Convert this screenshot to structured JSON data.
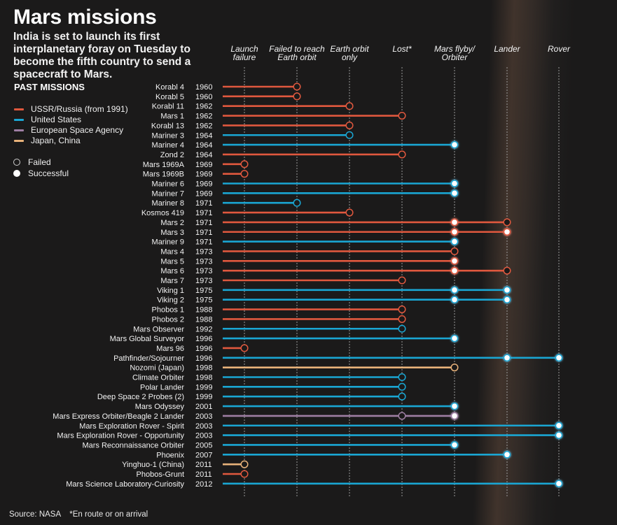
{
  "header": {
    "title": "Mars missions",
    "subtitle": "India is set to launch its first interplanetary foray on Tuesday to become the fifth country to send a spacecraft to Mars."
  },
  "legend": {
    "title": "PAST MISSIONS",
    "agencies": [
      {
        "key": "ussr",
        "label": "USSR/Russia (from 1991)",
        "color": "#e0583e"
      },
      {
        "key": "us",
        "label": "United States",
        "color": "#1aa6d3"
      },
      {
        "key": "esa",
        "label": "European Space Agency",
        "color": "#9e7ea3"
      },
      {
        "key": "japan_china",
        "label": "Japan, China",
        "color": "#e8b27a"
      }
    ],
    "statuses": [
      {
        "key": "failed",
        "label": "Failed"
      },
      {
        "key": "successful",
        "label": "Successful"
      }
    ]
  },
  "footer": {
    "source": "Source: NASA    *En route or on arrival"
  },
  "chart_data": {
    "type": "table",
    "title": "Mars missions",
    "stages": [
      "Launch failure",
      "Failed to reach Earth orbit",
      "Earth orbit only",
      "Lost*",
      "Mars flyby/ Orbiter",
      "Lander",
      "Rover"
    ],
    "stage_lines": [
      [
        "Launch",
        "failure"
      ],
      [
        "Failed to reach",
        "Earth orbit"
      ],
      [
        "Earth orbit",
        "only"
      ],
      [
        "Lost*"
      ],
      [
        "Mars flyby/",
        "Orbiter"
      ],
      [
        "Lander"
      ],
      [
        "Rover"
      ]
    ],
    "missions": [
      {
        "name": "Korabl 4",
        "year": "1960",
        "agency": "ussr",
        "markers": [
          {
            "stage": 1,
            "status": "failed"
          }
        ]
      },
      {
        "name": "Korabl 5",
        "year": "1960",
        "agency": "ussr",
        "markers": [
          {
            "stage": 1,
            "status": "failed"
          }
        ]
      },
      {
        "name": "Korabl 11",
        "year": "1962",
        "agency": "ussr",
        "markers": [
          {
            "stage": 2,
            "status": "failed"
          }
        ]
      },
      {
        "name": "Mars 1",
        "year": "1962",
        "agency": "ussr",
        "markers": [
          {
            "stage": 3,
            "status": "failed"
          }
        ]
      },
      {
        "name": "Korabl 13",
        "year": "1962",
        "agency": "ussr",
        "markers": [
          {
            "stage": 2,
            "status": "failed"
          }
        ]
      },
      {
        "name": "Mariner 3",
        "year": "1964",
        "agency": "us",
        "markers": [
          {
            "stage": 2,
            "status": "failed"
          }
        ]
      },
      {
        "name": "Mariner 4",
        "year": "1964",
        "agency": "us",
        "markers": [
          {
            "stage": 4,
            "status": "successful"
          }
        ]
      },
      {
        "name": "Zond 2",
        "year": "1964",
        "agency": "ussr",
        "markers": [
          {
            "stage": 3,
            "status": "failed"
          }
        ]
      },
      {
        "name": "Mars 1969A",
        "year": "1969",
        "agency": "ussr",
        "markers": [
          {
            "stage": 0,
            "status": "failed"
          }
        ]
      },
      {
        "name": "Mars 1969B",
        "year": "1969",
        "agency": "ussr",
        "markers": [
          {
            "stage": 0,
            "status": "failed"
          }
        ]
      },
      {
        "name": "Mariner 6",
        "year": "1969",
        "agency": "us",
        "markers": [
          {
            "stage": 4,
            "status": "successful"
          }
        ]
      },
      {
        "name": "Mariner 7",
        "year": "1969",
        "agency": "us",
        "markers": [
          {
            "stage": 4,
            "status": "successful"
          }
        ]
      },
      {
        "name": "Mariner 8",
        "year": "1971",
        "agency": "us",
        "markers": [
          {
            "stage": 1,
            "status": "failed"
          }
        ]
      },
      {
        "name": "Kosmos 419",
        "year": "1971",
        "agency": "ussr",
        "markers": [
          {
            "stage": 2,
            "status": "failed"
          }
        ]
      },
      {
        "name": "Mars 2",
        "year": "1971",
        "agency": "ussr",
        "markers": [
          {
            "stage": 4,
            "status": "successful"
          },
          {
            "stage": 5,
            "status": "failed"
          }
        ]
      },
      {
        "name": "Mars 3",
        "year": "1971",
        "agency": "ussr",
        "markers": [
          {
            "stage": 4,
            "status": "successful"
          },
          {
            "stage": 5,
            "status": "successful"
          }
        ]
      },
      {
        "name": "Mariner 9",
        "year": "1971",
        "agency": "us",
        "markers": [
          {
            "stage": 4,
            "status": "successful"
          }
        ]
      },
      {
        "name": "Mars 4",
        "year": "1973",
        "agency": "ussr",
        "markers": [
          {
            "stage": 4,
            "status": "failed"
          }
        ]
      },
      {
        "name": "Mars 5",
        "year": "1973",
        "agency": "ussr",
        "markers": [
          {
            "stage": 4,
            "status": "successful"
          }
        ]
      },
      {
        "name": "Mars 6",
        "year": "1973",
        "agency": "ussr",
        "markers": [
          {
            "stage": 4,
            "status": "successful"
          },
          {
            "stage": 5,
            "status": "failed"
          }
        ]
      },
      {
        "name": "Mars 7",
        "year": "1973",
        "agency": "ussr",
        "markers": [
          {
            "stage": 3,
            "status": "failed"
          }
        ]
      },
      {
        "name": "Viking 1",
        "year": "1975",
        "agency": "us",
        "markers": [
          {
            "stage": 4,
            "status": "successful"
          },
          {
            "stage": 5,
            "status": "successful"
          }
        ]
      },
      {
        "name": "Viking 2",
        "year": "1975",
        "agency": "us",
        "markers": [
          {
            "stage": 4,
            "status": "successful"
          },
          {
            "stage": 5,
            "status": "successful"
          }
        ]
      },
      {
        "name": "Phobos 1",
        "year": "1988",
        "agency": "ussr",
        "markers": [
          {
            "stage": 3,
            "status": "failed"
          }
        ]
      },
      {
        "name": "Phobos 2",
        "year": "1988",
        "agency": "ussr",
        "markers": [
          {
            "stage": 3,
            "status": "failed"
          }
        ]
      },
      {
        "name": "Mars Observer",
        "year": "1992",
        "agency": "us",
        "markers": [
          {
            "stage": 3,
            "status": "failed"
          }
        ]
      },
      {
        "name": "Mars Global Surveyor",
        "year": "1996",
        "agency": "us",
        "markers": [
          {
            "stage": 4,
            "status": "successful"
          }
        ]
      },
      {
        "name": "Mars 96",
        "year": "1996",
        "agency": "ussr",
        "markers": [
          {
            "stage": 0,
            "status": "failed"
          }
        ]
      },
      {
        "name": "Pathfinder/Sojourner",
        "year": "1996",
        "agency": "us",
        "markers": [
          {
            "stage": 5,
            "status": "successful"
          },
          {
            "stage": 6,
            "status": "successful"
          }
        ]
      },
      {
        "name": "Nozomi (Japan)",
        "year": "1998",
        "agency": "japan_china",
        "markers": [
          {
            "stage": 4,
            "status": "failed"
          }
        ]
      },
      {
        "name": "Climate Orbiter",
        "year": "1998",
        "agency": "us",
        "markers": [
          {
            "stage": 3,
            "status": "failed"
          }
        ]
      },
      {
        "name": "Polar Lander",
        "year": "1999",
        "agency": "us",
        "markers": [
          {
            "stage": 3,
            "status": "failed"
          }
        ]
      },
      {
        "name": "Deep Space 2 Probes (2)",
        "year": "1999",
        "agency": "us",
        "markers": [
          {
            "stage": 3,
            "status": "failed"
          }
        ]
      },
      {
        "name": "Mars Odyssey",
        "year": "2001",
        "agency": "us",
        "markers": [
          {
            "stage": 4,
            "status": "successful"
          }
        ]
      },
      {
        "name": "Mars Express Orbiter/Beagle 2 Lander",
        "year": "2003",
        "agency": "esa",
        "markers": [
          {
            "stage": 3,
            "status": "failed"
          },
          {
            "stage": 4,
            "status": "successful"
          }
        ]
      },
      {
        "name": "Mars Exploration Rover - Spirit",
        "year": "2003",
        "agency": "us",
        "markers": [
          {
            "stage": 6,
            "status": "successful"
          }
        ]
      },
      {
        "name": "Mars Exploration Rover - Opportunity",
        "year": "2003",
        "agency": "us",
        "markers": [
          {
            "stage": 6,
            "status": "successful"
          }
        ]
      },
      {
        "name": "Mars Reconnaissance Orbiter",
        "year": "2005",
        "agency": "us",
        "markers": [
          {
            "stage": 4,
            "status": "successful"
          }
        ]
      },
      {
        "name": "Phoenix",
        "year": "2007",
        "agency": "us",
        "markers": [
          {
            "stage": 5,
            "status": "successful"
          }
        ]
      },
      {
        "name": "Yinghuo-1 (China)",
        "year": "2011",
        "agency": "japan_china",
        "markers": [
          {
            "stage": 0,
            "status": "failed"
          }
        ]
      },
      {
        "name": "Phobos-Grunt",
        "year": "2011",
        "agency": "ussr",
        "markers": [
          {
            "stage": 0,
            "status": "failed"
          }
        ]
      },
      {
        "name": "Mars Science Laboratory-Curiosity",
        "year": "2012",
        "agency": "us",
        "markers": [
          {
            "stage": 6,
            "status": "successful"
          }
        ]
      }
    ]
  }
}
